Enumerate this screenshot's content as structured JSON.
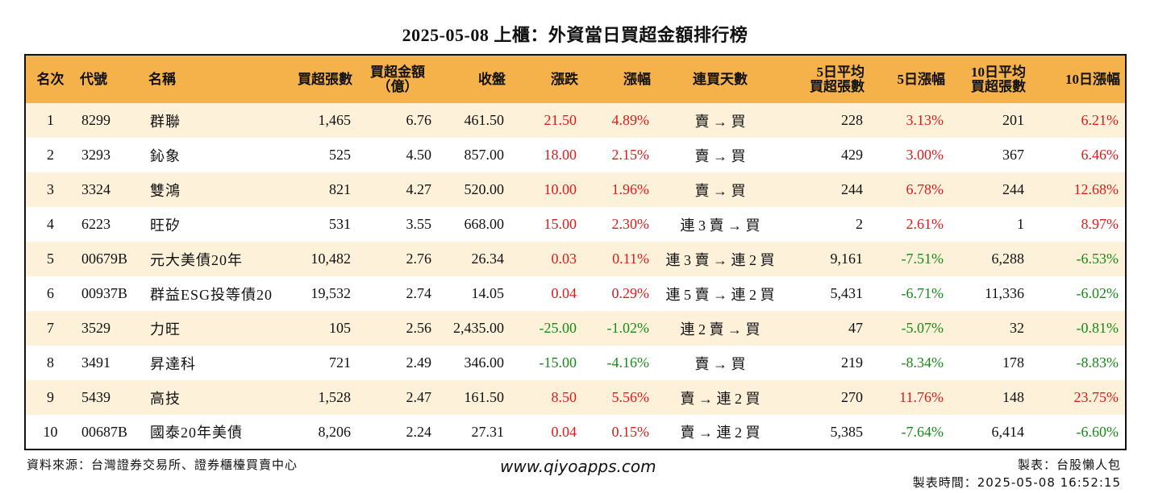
{
  "title": "2025-05-08 上櫃：外資當日買超金額排行榜",
  "colors": {
    "header_bg": "#f6b24a",
    "row_alt_bg": "#fdf1da",
    "up": "#e01a1a",
    "down": "#178a17"
  },
  "headers": {
    "rank": "名次",
    "code": "代號",
    "name": "名稱",
    "net_buy_lots": "買超張數",
    "net_buy_amount_line1": "買超金額",
    "net_buy_amount_line2": "（億）",
    "close": "收盤",
    "change": "漲跌",
    "change_pct": "漲幅",
    "streak": "連買天數",
    "avg5_line1": "5日平均",
    "avg5_line2": "買超張數",
    "chg5": "5日漲幅",
    "avg10_line1": "10日平均",
    "avg10_line2": "買超張數",
    "chg10": "10日漲幅"
  },
  "rows": [
    {
      "rank": "1",
      "code": "8299",
      "name": "群聯",
      "lots": "1,465",
      "amount": "6.76",
      "close": "461.50",
      "change": "21.50",
      "change_dir": "up",
      "pct": "4.89%",
      "pct_dir": "up",
      "streak": "賣 → 買",
      "avg5": "228",
      "chg5": "3.13%",
      "chg5_dir": "up",
      "avg10": "201",
      "chg10": "6.21%",
      "chg10_dir": "up"
    },
    {
      "rank": "2",
      "code": "3293",
      "name": "鈊象",
      "lots": "525",
      "amount": "4.50",
      "close": "857.00",
      "change": "18.00",
      "change_dir": "up",
      "pct": "2.15%",
      "pct_dir": "up",
      "streak": "賣 → 買",
      "avg5": "429",
      "chg5": "3.00%",
      "chg5_dir": "up",
      "avg10": "367",
      "chg10": "6.46%",
      "chg10_dir": "up"
    },
    {
      "rank": "3",
      "code": "3324",
      "name": "雙鴻",
      "lots": "821",
      "amount": "4.27",
      "close": "520.00",
      "change": "10.00",
      "change_dir": "up",
      "pct": "1.96%",
      "pct_dir": "up",
      "streak": "賣 → 買",
      "avg5": "244",
      "chg5": "6.78%",
      "chg5_dir": "up",
      "avg10": "244",
      "chg10": "12.68%",
      "chg10_dir": "up"
    },
    {
      "rank": "4",
      "code": "6223",
      "name": "旺矽",
      "lots": "531",
      "amount": "3.55",
      "close": "668.00",
      "change": "15.00",
      "change_dir": "up",
      "pct": "2.30%",
      "pct_dir": "up",
      "streak": "連 3 賣 → 買",
      "avg5": "2",
      "chg5": "2.61%",
      "chg5_dir": "up",
      "avg10": "1",
      "chg10": "8.97%",
      "chg10_dir": "up"
    },
    {
      "rank": "5",
      "code": "00679B",
      "name": "元大美債20年",
      "lots": "10,482",
      "amount": "2.76",
      "close": "26.34",
      "change": "0.03",
      "change_dir": "up",
      "pct": "0.11%",
      "pct_dir": "up",
      "streak": "連 3 賣 → 連 2 買",
      "avg5": "9,161",
      "chg5": "-7.51%",
      "chg5_dir": "down",
      "avg10": "6,288",
      "chg10": "-6.53%",
      "chg10_dir": "down"
    },
    {
      "rank": "6",
      "code": "00937B",
      "name": "群益ESG投等債20",
      "lots": "19,532",
      "amount": "2.74",
      "close": "14.05",
      "change": "0.04",
      "change_dir": "up",
      "pct": "0.29%",
      "pct_dir": "up",
      "streak": "連 5 賣 → 連 2 買",
      "avg5": "5,431",
      "chg5": "-6.71%",
      "chg5_dir": "down",
      "avg10": "11,336",
      "chg10": "-6.02%",
      "chg10_dir": "down"
    },
    {
      "rank": "7",
      "code": "3529",
      "name": "力旺",
      "lots": "105",
      "amount": "2.56",
      "close": "2,435.00",
      "change": "-25.00",
      "change_dir": "down",
      "pct": "-1.02%",
      "pct_dir": "down",
      "streak": "連 2 賣 → 買",
      "avg5": "47",
      "chg5": "-5.07%",
      "chg5_dir": "down",
      "avg10": "32",
      "chg10": "-0.81%",
      "chg10_dir": "down"
    },
    {
      "rank": "8",
      "code": "3491",
      "name": "昇達科",
      "lots": "721",
      "amount": "2.49",
      "close": "346.00",
      "change": "-15.00",
      "change_dir": "down",
      "pct": "-4.16%",
      "pct_dir": "down",
      "streak": "賣 → 買",
      "avg5": "219",
      "chg5": "-8.34%",
      "chg5_dir": "down",
      "avg10": "178",
      "chg10": "-8.83%",
      "chg10_dir": "down"
    },
    {
      "rank": "9",
      "code": "5439",
      "name": "高技",
      "lots": "1,528",
      "amount": "2.47",
      "close": "161.50",
      "change": "8.50",
      "change_dir": "up",
      "pct": "5.56%",
      "pct_dir": "up",
      "streak": "賣 → 連 2 買",
      "avg5": "270",
      "chg5": "11.76%",
      "chg5_dir": "up",
      "avg10": "148",
      "chg10": "23.75%",
      "chg10_dir": "up"
    },
    {
      "rank": "10",
      "code": "00687B",
      "name": "國泰20年美債",
      "lots": "8,206",
      "amount": "2.24",
      "close": "27.31",
      "change": "0.04",
      "change_dir": "up",
      "pct": "0.15%",
      "pct_dir": "up",
      "streak": "賣 → 連 2 買",
      "avg5": "5,385",
      "chg5": "-7.64%",
      "chg5_dir": "down",
      "avg10": "6,414",
      "chg10": "-6.60%",
      "chg10_dir": "down"
    }
  ],
  "footer": {
    "source": "資料來源：台灣證券交易所、證券櫃檯買賣中心",
    "website": "www.qiyoapps.com",
    "author": "製表：台股懶人包",
    "made_time": "製表時間：2025-05-08 16:52:15"
  }
}
